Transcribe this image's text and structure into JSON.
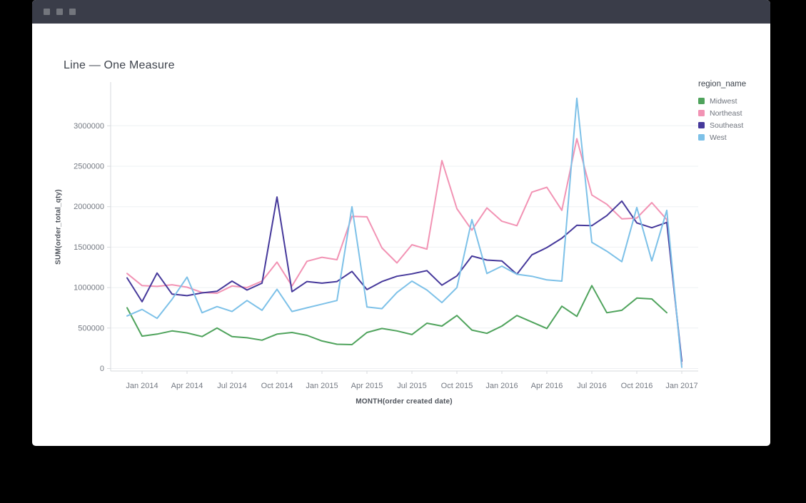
{
  "titlebar": {
    "window_controls": [
      "window-button",
      "window-button",
      "window-button"
    ]
  },
  "chart_data": {
    "type": "line",
    "title": "Line — One Measure",
    "xlabel": "MONTH(order created date)",
    "ylabel": "SUM(order_total_qty)",
    "legend_title": "region_name",
    "legend_position": "right",
    "grid": "horizontal",
    "ylim": [
      0,
      3540000
    ],
    "y_ticks": [
      0,
      500000,
      1000000,
      1500000,
      2000000,
      2500000,
      3000000
    ],
    "x": [
      "2013-12",
      "2014-01",
      "2014-02",
      "2014-03",
      "2014-04",
      "2014-05",
      "2014-06",
      "2014-07",
      "2014-08",
      "2014-09",
      "2014-10",
      "2014-11",
      "2014-12",
      "2015-01",
      "2015-02",
      "2015-03",
      "2015-04",
      "2015-05",
      "2015-06",
      "2015-07",
      "2015-08",
      "2015-09",
      "2015-10",
      "2015-11",
      "2015-12",
      "2016-01",
      "2016-02",
      "2016-03",
      "2016-04",
      "2016-05",
      "2016-06",
      "2016-07",
      "2016-08",
      "2016-09",
      "2016-10",
      "2016-11",
      "2016-12",
      "2017-01"
    ],
    "x_tick_labels": [
      "Jan 2014",
      "Apr 2014",
      "Jul 2014",
      "Oct 2014",
      "Jan 2015",
      "Apr 2015",
      "Jul 2015",
      "Oct 2015",
      "Jan 2016",
      "Apr 2016",
      "Jul 2016",
      "Oct 2016",
      "Jan 2017"
    ],
    "x_tick_indices": [
      1,
      4,
      7,
      10,
      13,
      16,
      19,
      22,
      25,
      28,
      31,
      34,
      37
    ],
    "series": [
      {
        "name": "Midwest",
        "color": "#4fa35c",
        "values": [
          750000,
          400000,
          425000,
          465000,
          440000,
          395000,
          500000,
          395000,
          380000,
          350000,
          425000,
          445000,
          410000,
          340000,
          300000,
          295000,
          445000,
          495000,
          465000,
          420000,
          560000,
          525000,
          655000,
          475000,
          435000,
          525000,
          655000,
          575000,
          495000,
          770000,
          645000,
          1025000,
          690000,
          720000,
          870000,
          860000,
          690000,
          null
        ]
      },
      {
        "name": "Northeast",
        "color": "#f293b4",
        "values": [
          1175000,
          1025000,
          1015000,
          1035000,
          1005000,
          940000,
          930000,
          1020000,
          1000000,
          1080000,
          1315000,
          1020000,
          1325000,
          1375000,
          1345000,
          1880000,
          1875000,
          1490000,
          1305000,
          1530000,
          1475000,
          2570000,
          1975000,
          1710000,
          1985000,
          1820000,
          1765000,
          2180000,
          2240000,
          1955000,
          2840000,
          2145000,
          2030000,
          1850000,
          1860000,
          2050000,
          1840000,
          50000
        ]
      },
      {
        "name": "Southeast",
        "color": "#46399b",
        "values": [
          1120000,
          825000,
          1180000,
          920000,
          900000,
          935000,
          955000,
          1080000,
          970000,
          1055000,
          2120000,
          950000,
          1075000,
          1055000,
          1075000,
          1200000,
          975000,
          1075000,
          1140000,
          1170000,
          1210000,
          1030000,
          1145000,
          1390000,
          1340000,
          1330000,
          1165000,
          1405000,
          1495000,
          1610000,
          1770000,
          1765000,
          1890000,
          2070000,
          1800000,
          1740000,
          1805000,
          90000
        ]
      },
      {
        "name": "West",
        "color": "#7dc1e8",
        "values": [
          650000,
          730000,
          620000,
          855000,
          1130000,
          690000,
          765000,
          705000,
          840000,
          720000,
          980000,
          705000,
          750000,
          795000,
          840000,
          2000000,
          760000,
          740000,
          940000,
          1080000,
          970000,
          815000,
          1000000,
          1840000,
          1175000,
          1265000,
          1165000,
          1140000,
          1095000,
          1080000,
          3340000,
          1560000,
          1450000,
          1320000,
          1990000,
          1330000,
          1955000,
          15000
        ]
      }
    ]
  }
}
